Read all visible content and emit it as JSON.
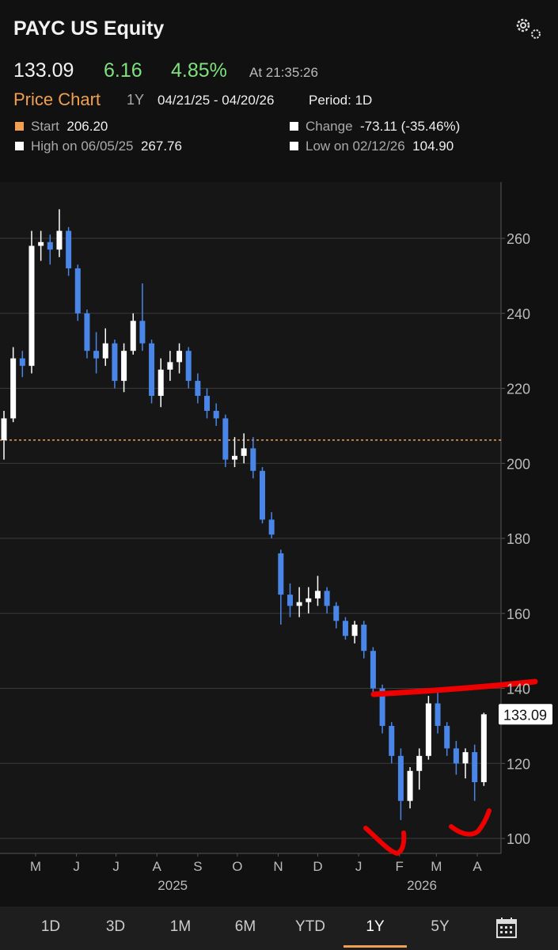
{
  "header": {
    "title": "PAYC US Equity"
  },
  "quote": {
    "last": "133.09",
    "change": "6.16",
    "change_pct": "4.85%",
    "time": "At 21:35:26"
  },
  "toolbar": {
    "title": "Price Chart",
    "range": "1Y",
    "dates": "04/21/25 - 04/20/26",
    "period": "Period: 1D"
  },
  "stats": {
    "start_label": "Start",
    "start": "206.20",
    "change_label": "Change",
    "change": "-73.11 (-35.46%)",
    "high_label": "High on 06/05/25",
    "high": "267.76",
    "low_label": "Low on 02/12/26",
    "low": "104.90"
  },
  "chart_data": {
    "type": "candlestick",
    "x": [
      0,
      7,
      14,
      21,
      28,
      35,
      42,
      49,
      56,
      63,
      70,
      77,
      84,
      91,
      98,
      105,
      112,
      119,
      126,
      133,
      140,
      147,
      154,
      161,
      168,
      175,
      182,
      189,
      196,
      203,
      210,
      217,
      224,
      231,
      238,
      245,
      252,
      259,
      266,
      273,
      280,
      287,
      294,
      301,
      308,
      315,
      322,
      329,
      336,
      343,
      350,
      357,
      364
    ],
    "open": [
      206.2,
      212,
      228,
      226,
      258,
      259,
      257,
      262,
      252,
      240,
      230,
      228,
      232,
      222,
      230,
      238,
      232,
      218,
      225,
      227,
      230,
      222,
      218,
      214,
      212,
      201,
      202,
      204,
      198,
      185,
      176,
      165,
      162,
      163,
      164,
      166,
      162,
      158,
      154,
      157,
      150,
      140,
      130,
      122,
      110,
      118,
      122,
      136,
      130,
      124,
      120,
      123,
      115
    ],
    "high": [
      214,
      231,
      230,
      262,
      262,
      261,
      267.76,
      263,
      253,
      241,
      235,
      236,
      233,
      232,
      240,
      248,
      233,
      228,
      230,
      232,
      231,
      224,
      220,
      216,
      213,
      207,
      208,
      207,
      199,
      187,
      177,
      168,
      167,
      167,
      170,
      167,
      163,
      159,
      158,
      158,
      151,
      141,
      131,
      124,
      119,
      124,
      138,
      139,
      131,
      126,
      124,
      125,
      133.5
    ],
    "low": [
      201,
      211,
      223,
      224,
      254,
      253,
      255,
      250,
      238,
      228,
      224,
      226,
      220,
      219,
      229,
      230,
      216,
      215,
      222,
      224,
      220,
      216,
      212,
      210,
      199,
      199,
      200,
      196,
      184,
      180,
      157,
      159,
      159,
      160,
      162,
      160,
      156,
      153,
      152,
      148,
      139,
      128,
      120,
      104.9,
      108,
      113,
      121,
      128,
      122,
      117,
      116,
      110,
      114
    ],
    "close": [
      212,
      228,
      226,
      258,
      259,
      257,
      262,
      252,
      240,
      230,
      228,
      232,
      222,
      230,
      238,
      232,
      218,
      225,
      227,
      230,
      222,
      218,
      214,
      212,
      201,
      202,
      204,
      198,
      185,
      181,
      165,
      162,
      163,
      164,
      166,
      162,
      158,
      154,
      157,
      150,
      140,
      130,
      122,
      110,
      118,
      122,
      136,
      130,
      124,
      120,
      123,
      115,
      133.09
    ],
    "up_color": "#ffffff",
    "down_color": "#4a86e8",
    "xlim": [
      -3,
      377
    ],
    "ylim": [
      96,
      275
    ],
    "yticks": [
      100,
      120,
      140,
      160,
      180,
      200,
      220,
      240,
      260
    ],
    "xticks": [
      {
        "value": 24,
        "label": "M"
      },
      {
        "value": 55,
        "label": "J"
      },
      {
        "value": 85,
        "label": "J"
      },
      {
        "value": 116,
        "label": "A"
      },
      {
        "value": 147,
        "label": "S"
      },
      {
        "value": 177,
        "label": "O"
      },
      {
        "value": 208,
        "label": "N"
      },
      {
        "value": 238,
        "label": "D"
      },
      {
        "value": 269,
        "label": "J"
      },
      {
        "value": 300,
        "label": "F"
      },
      {
        "value": 328,
        "label": "M"
      },
      {
        "value": 359,
        "label": "A"
      }
    ],
    "x_year_ticks": [
      {
        "value": 128,
        "label": "2025"
      },
      {
        "value": 317,
        "label": "2026"
      }
    ],
    "grid": true
  },
  "tabs": [
    "1D",
    "3D",
    "1M",
    "6M",
    "YTD",
    "1Y",
    "5Y"
  ],
  "selected_tab": "1Y"
}
